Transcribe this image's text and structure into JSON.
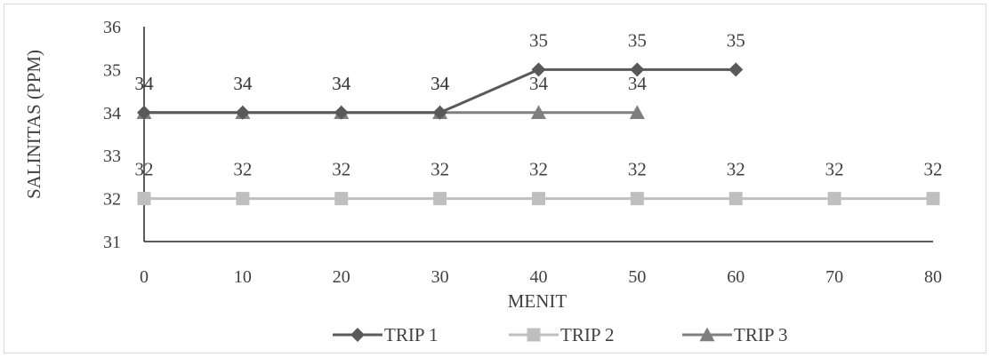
{
  "chart_data": {
    "type": "line",
    "title": "",
    "xlabel": "MENIT",
    "ylabel": "SALINITAS (PPM)",
    "x": [
      0,
      10,
      20,
      30,
      40,
      50,
      60,
      70,
      80
    ],
    "x_ticks": [
      "0",
      "10",
      "20",
      "30",
      "40",
      "50",
      "60",
      "70",
      "80"
    ],
    "y_ticks": [
      "31",
      "32",
      "33",
      "34",
      "35",
      "36"
    ],
    "xlim": [
      0,
      80
    ],
    "ylim": [
      31,
      36
    ],
    "grid": false,
    "legend_position": "bottom",
    "series": [
      {
        "name": "TRIP 1",
        "marker": "diamond",
        "color": "#595959",
        "x": [
          0,
          10,
          20,
          30,
          40,
          50,
          60
        ],
        "values": [
          34,
          34,
          34,
          34,
          35,
          35,
          35
        ],
        "labels": [
          "34",
          "34",
          "34",
          "34",
          "35",
          "35",
          "35"
        ]
      },
      {
        "name": "TRIP 2",
        "marker": "square",
        "color": "#bfbfbf",
        "x": [
          0,
          10,
          20,
          30,
          40,
          50,
          60,
          70,
          80
        ],
        "values": [
          32,
          32,
          32,
          32,
          32,
          32,
          32,
          32,
          32
        ],
        "labels": [
          "32",
          "32",
          "32",
          "32",
          "32",
          "32",
          "32",
          "32",
          "32"
        ]
      },
      {
        "name": "TRIP 3",
        "marker": "triangle",
        "color": "#7f7f7f",
        "x": [
          0,
          10,
          20,
          30,
          40,
          50
        ],
        "values": [
          34,
          34,
          34,
          34,
          34,
          34
        ],
        "labels": [
          "34",
          "34",
          "34",
          "34",
          "34",
          "34"
        ]
      }
    ]
  }
}
